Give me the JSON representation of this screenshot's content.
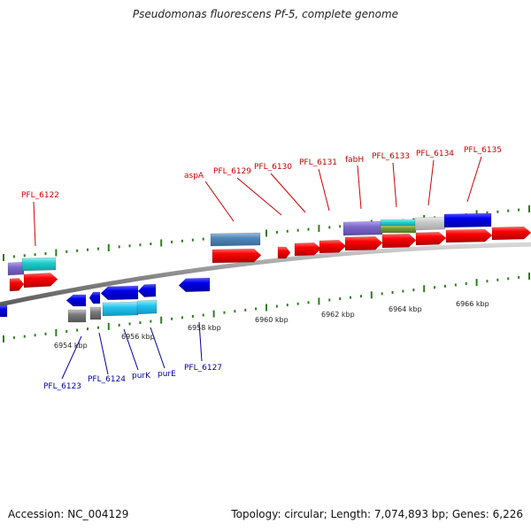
{
  "title": "Pseudomonas fluorescens Pf-5, complete genome",
  "footer": {
    "accession": "Accession: NC_004129",
    "stats": "Topology: circular; Length: 7,074,893 bp; Genes: 6,226"
  },
  "colors": {
    "backbone": "#8a8a8a",
    "tick": "#2e7d1e",
    "forward_label": "#cc0000",
    "reverse_label": "#0000aa",
    "leader_forward": "#cc0000",
    "leader_reverse": "#0000aa"
  },
  "scale_labels": [
    "6954 kbp",
    "6956 kbp",
    "6958 kbp",
    "6960 kbp",
    "6962 kbp",
    "6964 kbp",
    "6966 kbp"
  ],
  "forward_labels": [
    "PFL_6122",
    "aspA",
    "PFL_6129",
    "PFL_6130",
    "PFL_6131",
    "fabH",
    "PFL_6133",
    "PFL_6134",
    "PFL_6135"
  ],
  "reverse_labels": [
    "PFL_6123",
    "PFL_6124",
    "purK",
    "purE",
    "PFL_6127"
  ]
}
